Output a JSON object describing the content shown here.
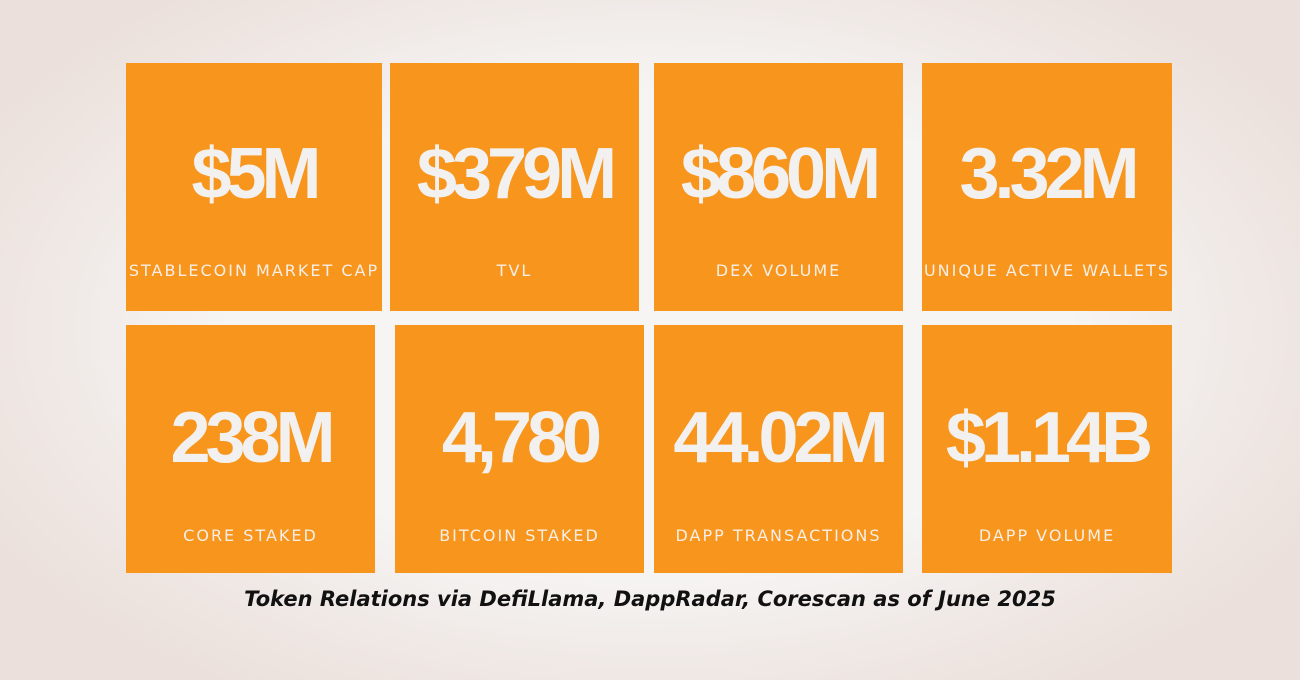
{
  "colors": {
    "card_background": "#f7951d",
    "value_text": "#f3f1ef",
    "label_text": "#f7efe7",
    "caption_text": "#111111"
  },
  "stats": [
    {
      "value": "$5M",
      "label": "STABLECOIN MARKET CAP"
    },
    {
      "value": "$379M",
      "label": "TVL"
    },
    {
      "value": "$860M",
      "label": "DEX VOLUME"
    },
    {
      "value": "3.32M",
      "label": "UNIQUE ACTIVE WALLETS"
    },
    {
      "value": "238M",
      "label": "CORE STAKED"
    },
    {
      "value": "4,780",
      "label": "BITCOIN STAKED"
    },
    {
      "value": "44.02M",
      "label": "DAPP TRANSACTIONS"
    },
    {
      "value": "$1.14B",
      "label": "DAPP VOLUME"
    }
  ],
  "caption": "Token Relations via DefiLlama, DappRadar, Corescan as of June 2025"
}
